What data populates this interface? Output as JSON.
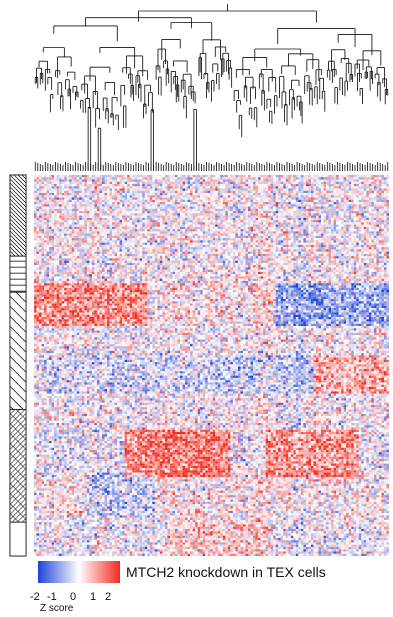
{
  "chart_data": {
    "type": "heatmap",
    "title": "",
    "xlabel": "",
    "ylabel": "",
    "legend": {
      "title": "Z score",
      "ticks": [
        "-2",
        "-1",
        "0",
        "1",
        "2"
      ],
      "values": [
        -2,
        -1,
        0,
        1,
        2
      ],
      "colors": [
        "#1f43d6",
        "#ffffff",
        "#f22b1f"
      ]
    },
    "caption": "MTCH2 knockdown in TEX cells",
    "row_groups": [
      {
        "name": "",
        "rows": 36,
        "pattern": "diagonal-dense"
      },
      {
        "name": "",
        "rows": 16,
        "pattern": "horizontal"
      },
      {
        "name": "",
        "rows": 52,
        "pattern": "diagonal-sparse"
      },
      {
        "name": "",
        "rows": 50,
        "pattern": "crosshatch"
      },
      {
        "name": "",
        "rows": 15,
        "pattern": "empty"
      }
    ],
    "column_count": 141,
    "zlim": [
      -2,
      2
    ],
    "dendrogram": "column clustering tree"
  },
  "colors": {
    "low": "#1f43d6",
    "mid": "#ffffff",
    "high": "#f22b1f",
    "line": "#111111"
  }
}
